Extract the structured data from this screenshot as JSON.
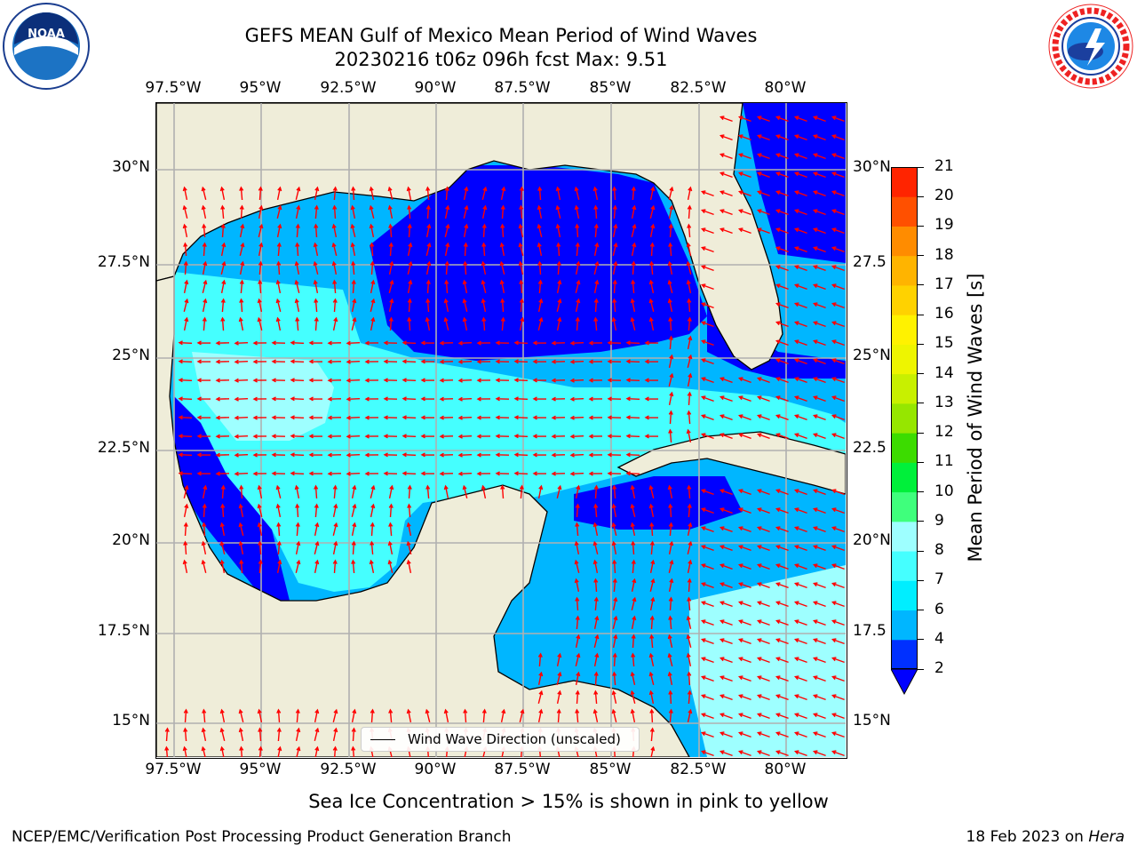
{
  "header": {
    "title_line1": "GEFS MEAN Gulf of Mexico Mean Period of Wind Waves",
    "title_line2": "20230216 t06z 096h fcst   Max: 9.51"
  },
  "map": {
    "lon_ticks": [
      "97.5°W",
      "95°W",
      "92.5°W",
      "90°W",
      "87.5°W",
      "85°W",
      "82.5°W",
      "80°W"
    ],
    "lat_ticks_left": [
      "30°N",
      "27.5°N",
      "25°N",
      "22.5°N",
      "20°N",
      "17.5°N",
      "15°N"
    ],
    "lat_ticks_right": [
      "30°N",
      "27.5",
      "25°N",
      "22.5",
      "20°N",
      "17.5",
      "15°N"
    ],
    "land_color": "#efedd9",
    "grid_color": "#b0b0b0",
    "arrow_color": "#ff0000"
  },
  "colorbar": {
    "label": "Mean Period of Wind Waves [s]",
    "ticks": [
      "2",
      "4",
      "6",
      "7",
      "8",
      "9",
      "10",
      "11",
      "12",
      "13",
      "14",
      "15",
      "16",
      "17",
      "18",
      "19",
      "20",
      "21"
    ],
    "colors": [
      "#0030ff",
      "#00b6ff",
      "#00eeff",
      "#45ffff",
      "#9effff",
      "#3fff7c",
      "#00f03a",
      "#3cdc00",
      "#96e600",
      "#c8f000",
      "#eef500",
      "#fff200",
      "#ffd200",
      "#ffb400",
      "#ff8c00",
      "#ff5000",
      "#ff2400",
      "#ff0000"
    ],
    "extend_color": "#0000ff"
  },
  "legend": {
    "label": "Wind Wave Direction (unscaled)"
  },
  "footer": {
    "subtitle": "Sea Ice Concentration > 15% is shown in pink to yellow",
    "credit": "NCEP/EMC/Verification Post Processing Product Generation Branch",
    "date": "18 Feb 2023 on",
    "host": "Hera"
  },
  "logos": {
    "left": "noaa-logo",
    "right": "nws-logo"
  }
}
